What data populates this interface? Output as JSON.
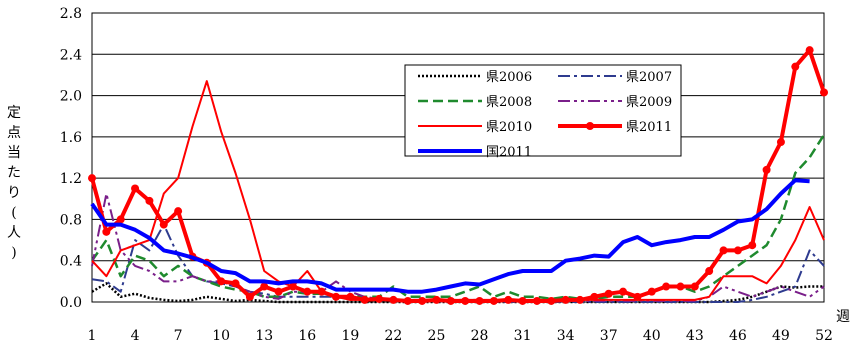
{
  "chart_data": {
    "type": "line",
    "ylabel": "定点当たり(人)",
    "xlabel": "週",
    "ylim": [
      0,
      2.8
    ],
    "yticks": [
      "0.0",
      "0.4",
      "0.8",
      "1.2",
      "1.6",
      "2.0",
      "2.4",
      "2.8"
    ],
    "xticks": [
      "1",
      "4",
      "7",
      "10",
      "13",
      "16",
      "19",
      "22",
      "25",
      "28",
      "31",
      "34",
      "37",
      "40",
      "43",
      "46",
      "49",
      "52"
    ],
    "grid": true,
    "legend_placement": "top-center",
    "series": [
      {
        "name": "県2006",
        "color": "#000000",
        "style": "dot",
        "width": 2.5,
        "marker": false,
        "values": [
          0.1,
          0.18,
          0.05,
          0.08,
          0.04,
          0.02,
          0.01,
          0.02,
          0.05,
          0.03,
          0.01,
          0.02,
          0.01,
          0.0,
          0.0,
          0.0,
          0.0,
          0.0,
          0.0,
          0.0,
          0.0,
          0.0,
          0.0,
          0.0,
          0.0,
          0.0,
          0.0,
          0.0,
          0.0,
          0.0,
          0.0,
          0.0,
          0.0,
          0.0,
          0.0,
          0.0,
          0.0,
          0.0,
          0.0,
          0.0,
          0.0,
          0.0,
          0.0,
          0.0,
          0.01,
          0.02,
          0.05,
          0.1,
          0.15,
          0.14,
          0.15,
          0.15
        ]
      },
      {
        "name": "県2007",
        "color": "#2e3b8f",
        "style": "dashdot",
        "width": 2,
        "marker": false,
        "values": [
          0.22,
          0.2,
          0.1,
          0.6,
          0.5,
          0.75,
          0.45,
          0.25,
          0.2,
          0.18,
          0.15,
          0.1,
          0.08,
          0.05,
          0.05,
          0.05,
          0.05,
          0.05,
          0.03,
          0.02,
          0.02,
          0.01,
          0.01,
          0.01,
          0.01,
          0.0,
          0.0,
          0.0,
          0.0,
          0.0,
          0.0,
          0.0,
          0.0,
          0.0,
          0.0,
          0.0,
          0.0,
          0.0,
          0.0,
          0.0,
          0.0,
          0.0,
          0.0,
          0.0,
          0.0,
          0.0,
          0.02,
          0.05,
          0.1,
          0.15,
          0.5,
          0.35
        ]
      },
      {
        "name": "県2008",
        "color": "#1f8a2e",
        "style": "dash",
        "width": 2.5,
        "marker": false,
        "values": [
          0.4,
          0.6,
          0.25,
          0.45,
          0.4,
          0.25,
          0.35,
          0.25,
          0.2,
          0.15,
          0.12,
          0.1,
          0.05,
          0.05,
          0.1,
          0.08,
          0.08,
          0.05,
          0.05,
          0.05,
          0.05,
          0.15,
          0.05,
          0.05,
          0.05,
          0.05,
          0.1,
          0.15,
          0.05,
          0.1,
          0.05,
          0.05,
          0.03,
          0.05,
          0.03,
          0.03,
          0.05,
          0.05,
          0.05,
          0.1,
          0.15,
          0.15,
          0.1,
          0.15,
          0.25,
          0.35,
          0.45,
          0.55,
          0.8,
          1.25,
          1.4,
          1.62
        ]
      },
      {
        "name": "県2009",
        "color": "#7a1f8a",
        "style": "dashdotdot",
        "width": 2,
        "marker": false,
        "values": [
          0.35,
          1.05,
          0.5,
          0.35,
          0.3,
          0.2,
          0.2,
          0.25,
          0.2,
          0.2,
          0.15,
          0.1,
          0.05,
          0.03,
          0.1,
          0.1,
          0.1,
          0.2,
          0.1,
          0.05,
          0.03,
          0.02,
          0.02,
          0.02,
          0.02,
          0.02,
          0.02,
          0.02,
          0.01,
          0.01,
          0.01,
          0.01,
          0.01,
          0.01,
          0.01,
          0.01,
          0.01,
          0.01,
          0.01,
          0.01,
          0.01,
          0.01,
          0.01,
          0.05,
          0.15,
          0.1,
          0.05,
          0.1,
          0.15,
          0.1,
          0.05,
          0.15
        ]
      },
      {
        "name": "県2010",
        "color": "#ff0000",
        "style": "solid",
        "width": 2,
        "marker": false,
        "values": [
          0.4,
          0.25,
          0.5,
          0.55,
          0.6,
          1.05,
          1.2,
          1.7,
          2.14,
          1.65,
          1.25,
          0.8,
          0.3,
          0.2,
          0.15,
          0.3,
          0.1,
          0.05,
          0.02,
          0.02,
          0.02,
          0.02,
          0.02,
          0.02,
          0.02,
          0.02,
          0.02,
          0.02,
          0.02,
          0.02,
          0.02,
          0.02,
          0.02,
          0.02,
          0.02,
          0.02,
          0.02,
          0.02,
          0.02,
          0.02,
          0.02,
          0.02,
          0.02,
          0.05,
          0.25,
          0.25,
          0.25,
          0.18,
          0.35,
          0.6,
          0.92,
          0.6
        ]
      },
      {
        "name": "県2011",
        "color": "#ff0000",
        "style": "solid",
        "width": 4,
        "marker": true,
        "values": [
          1.2,
          0.68,
          0.8,
          1.1,
          0.98,
          0.75,
          0.88,
          0.44,
          0.38,
          0.2,
          0.18,
          0.05,
          0.15,
          0.1,
          0.15,
          0.1,
          0.1,
          0.05,
          0.05,
          0.02,
          0.03,
          0.02,
          0.01,
          0.01,
          0.02,
          0.01,
          0.01,
          0.01,
          0.01,
          0.02,
          0.01,
          0.01,
          0.01,
          0.02,
          0.02,
          0.05,
          0.08,
          0.1,
          0.05,
          0.1,
          0.15,
          0.15,
          0.15,
          0.3,
          0.5,
          0.5,
          0.55,
          1.28,
          1.55,
          2.28,
          2.44,
          2.03
        ]
      },
      {
        "name": "国2011",
        "color": "#0000ff",
        "style": "solid",
        "width": 4,
        "marker": false,
        "values": [
          0.95,
          0.75,
          0.75,
          0.7,
          0.62,
          0.5,
          0.47,
          0.43,
          0.38,
          0.3,
          0.28,
          0.2,
          0.2,
          0.18,
          0.2,
          0.2,
          0.18,
          0.12,
          0.12,
          0.12,
          0.12,
          0.12,
          0.1,
          0.1,
          0.12,
          0.15,
          0.18,
          0.17,
          0.22,
          0.27,
          0.3,
          0.3,
          0.3,
          0.4,
          0.42,
          0.45,
          0.44,
          0.58,
          0.63,
          0.55,
          0.58,
          0.6,
          0.63,
          0.63,
          0.7,
          0.78,
          0.8,
          0.9,
          1.05,
          1.18,
          1.17
        ]
      }
    ]
  }
}
